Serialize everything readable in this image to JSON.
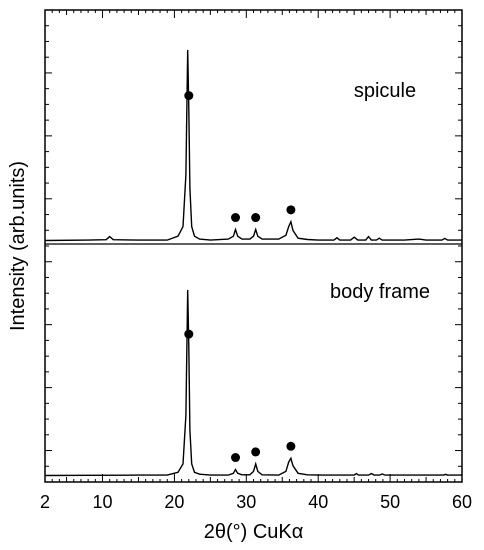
{
  "chart_data": {
    "type": "line",
    "title": "",
    "xlabel": "2θ(°) CuKα",
    "ylabel": "Intensity (arb.units)",
    "xlim": [
      2,
      60
    ],
    "x_ticks": [
      2,
      10,
      20,
      30,
      40,
      50,
      60
    ],
    "x_tick_labels": [
      "2",
      "10",
      "20",
      "30",
      "40",
      "50",
      "60"
    ],
    "grid": false,
    "legend": "none",
    "series": [
      {
        "name": "spicule",
        "x": [
          2,
          8,
          10.5,
          11,
          11.5,
          15,
          19,
          20.5,
          21.2,
          21.6,
          21.85,
          22.0,
          22.15,
          22.4,
          22.8,
          23.5,
          25,
          27.5,
          28.2,
          28.5,
          28.8,
          29.4,
          30.5,
          31.0,
          31.3,
          31.6,
          32.2,
          34.5,
          35.5,
          35.9,
          36.2,
          36.5,
          37.2,
          38.5,
          40,
          42.2,
          42.6,
          43,
          44.5,
          45,
          45.5,
          46.6,
          47.0,
          47.4,
          48.1,
          48.5,
          48.9,
          50,
          52,
          54,
          55,
          56,
          57.2,
          57.6,
          58,
          60
        ],
        "y": [
          0.8,
          1.0,
          1.2,
          2.8,
          1.2,
          1.0,
          1.0,
          3.0,
          8.0,
          35.0,
          100.0,
          70.0,
          28.0,
          8.0,
          3.0,
          1.5,
          1.0,
          1.5,
          3.0,
          6.5,
          3.0,
          1.5,
          1.5,
          3.0,
          6.5,
          3.0,
          1.5,
          1.5,
          3.5,
          8.0,
          10.5,
          6.0,
          2.0,
          1.3,
          1.0,
          1.0,
          2.2,
          1.0,
          1.0,
          2.5,
          1.0,
          1.0,
          2.8,
          1.0,
          1.0,
          2.0,
          1.0,
          1.0,
          1.0,
          1.5,
          1.0,
          1.0,
          1.0,
          1.9,
          1.0,
          1.0
        ],
        "markers_at_x": [
          22.0,
          28.5,
          31.3,
          36.2
        ]
      },
      {
        "name": "body frame",
        "x": [
          2,
          8,
          15,
          19,
          20.5,
          21.2,
          21.6,
          21.85,
          22.0,
          22.15,
          22.4,
          22.8,
          23.5,
          25,
          27.5,
          28.2,
          28.5,
          28.8,
          29.4,
          30.5,
          31.0,
          31.3,
          31.6,
          32.2,
          34.5,
          35.5,
          35.9,
          36.2,
          36.5,
          37.2,
          38.5,
          40,
          43,
          45,
          45.3,
          45.6,
          47,
          47.4,
          47.8,
          48.5,
          48.9,
          49.3,
          52,
          55,
          57.4,
          57.7,
          58,
          60
        ],
        "y": [
          0.8,
          0.9,
          1.0,
          1.0,
          2.5,
          7.0,
          33.0,
          100.0,
          70.0,
          25.0,
          7.0,
          2.5,
          1.5,
          1.0,
          1.0,
          2.0,
          4.0,
          2.0,
          1.2,
          1.2,
          3.0,
          7.0,
          3.0,
          1.2,
          1.0,
          3.0,
          8.0,
          10.0,
          6.0,
          2.0,
          1.2,
          1.0,
          1.0,
          1.0,
          1.8,
          1.0,
          1.0,
          1.8,
          1.0,
          1.0,
          1.6,
          1.0,
          1.0,
          1.0,
          1.0,
          1.4,
          1.0,
          1.0
        ],
        "markers_at_x": [
          22.0,
          28.5,
          31.3,
          36.2
        ]
      }
    ]
  }
}
